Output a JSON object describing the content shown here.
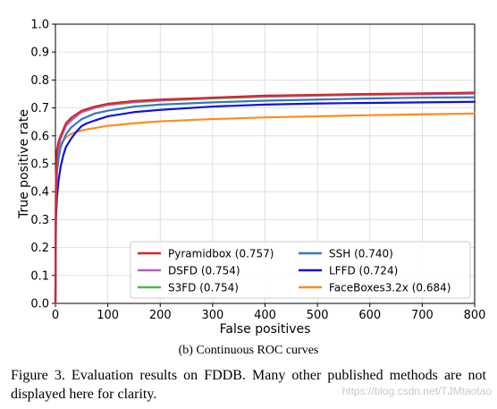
{
  "chart_data": {
    "type": "line",
    "title": "",
    "xlabel": "False positives",
    "ylabel": "True positive rate",
    "xlim": [
      0,
      800
    ],
    "ylim": [
      0,
      1.0
    ],
    "xticks": [
      0,
      100,
      200,
      300,
      400,
      500,
      600,
      700,
      800
    ],
    "yticks": [
      0.0,
      0.1,
      0.2,
      0.3,
      0.4,
      0.5,
      0.6,
      0.7,
      0.8,
      0.9,
      1.0
    ],
    "xtick_labels": [
      "0",
      "100",
      "200",
      "300",
      "400",
      "500",
      "600",
      "700",
      "800"
    ],
    "ytick_labels": [
      "0.0",
      "0.1",
      "0.2",
      "0.3",
      "0.4",
      "0.5",
      "0.6",
      "0.7",
      "0.8",
      "0.9",
      "1.0"
    ],
    "grid": true,
    "legend_position": "bottom-right",
    "series": [
      {
        "name": "Pyramidbox (0.757)",
        "color": "#d62728",
        "x": [
          0,
          1,
          3,
          6,
          10,
          20,
          30,
          50,
          75,
          100,
          150,
          200,
          300,
          400,
          500,
          600,
          700,
          800
        ],
        "y": [
          0,
          0.45,
          0.55,
          0.58,
          0.6,
          0.645,
          0.665,
          0.69,
          0.705,
          0.715,
          0.725,
          0.73,
          0.737,
          0.744,
          0.747,
          0.75,
          0.752,
          0.755
        ]
      },
      {
        "name": "DSFD (0.754)",
        "color": "#b25fc7",
        "x": [
          0,
          1,
          3,
          6,
          10,
          20,
          30,
          50,
          75,
          100,
          150,
          200,
          300,
          400,
          500,
          600,
          700,
          800
        ],
        "y": [
          0,
          0.4,
          0.52,
          0.56,
          0.59,
          0.635,
          0.655,
          0.685,
          0.7,
          0.712,
          0.722,
          0.728,
          0.736,
          0.742,
          0.745,
          0.748,
          0.75,
          0.752
        ]
      },
      {
        "name": "S3FD (0.754)",
        "color": "#4cb849",
        "x": [
          0,
          1,
          3,
          6,
          10,
          20,
          30,
          50,
          75,
          100,
          150,
          200,
          300,
          400,
          500,
          600,
          700,
          800
        ],
        "y": [
          0,
          0.42,
          0.54,
          0.575,
          0.6,
          0.64,
          0.66,
          0.685,
          0.7,
          0.71,
          0.72,
          0.726,
          0.734,
          0.74,
          0.744,
          0.747,
          0.749,
          0.751
        ]
      },
      {
        "name": "SSH (0.740)",
        "color": "#3478c0",
        "x": [
          0,
          1,
          3,
          6,
          10,
          20,
          30,
          50,
          75,
          100,
          150,
          200,
          300,
          400,
          500,
          600,
          700,
          800
        ],
        "y": [
          0,
          0.35,
          0.47,
          0.52,
          0.56,
          0.605,
          0.63,
          0.66,
          0.68,
          0.69,
          0.705,
          0.712,
          0.72,
          0.726,
          0.73,
          0.734,
          0.737,
          0.738
        ]
      },
      {
        "name": "LFFD (0.724)",
        "color": "#1212d8",
        "x": [
          0,
          1,
          3,
          6,
          10,
          15,
          20,
          30,
          40,
          50,
          60,
          75,
          100,
          150,
          200,
          300,
          400,
          500,
          600,
          700,
          800
        ],
        "y": [
          0,
          0.3,
          0.38,
          0.44,
          0.49,
          0.53,
          0.56,
          0.59,
          0.615,
          0.635,
          0.645,
          0.655,
          0.67,
          0.685,
          0.693,
          0.705,
          0.712,
          0.716,
          0.718,
          0.72,
          0.722
        ]
      },
      {
        "name": "FaceBoxes3.2x (0.684)",
        "color": "#ff8a1f",
        "x": [
          0,
          1,
          3,
          6,
          10,
          20,
          30,
          50,
          75,
          100,
          150,
          200,
          300,
          400,
          500,
          600,
          700,
          800
        ],
        "y": [
          0,
          0.42,
          0.52,
          0.55,
          0.57,
          0.595,
          0.607,
          0.62,
          0.628,
          0.636,
          0.645,
          0.652,
          0.66,
          0.666,
          0.67,
          0.674,
          0.677,
          0.68
        ]
      }
    ]
  },
  "subcaption": "(b)  Continuous ROC curves",
  "caption": "Figure 3. Evaluation results on FDDB. Many other published methods are not displayed here for clarity.",
  "watermark": "https://blog.csdn.net/TJMtaotao"
}
